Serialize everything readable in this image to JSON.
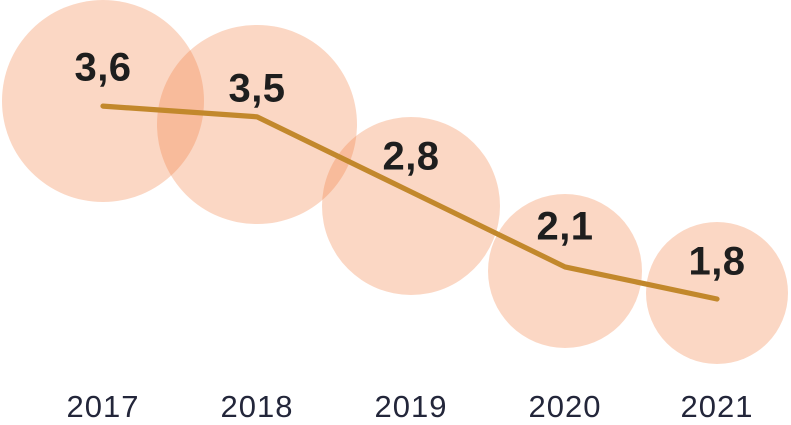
{
  "chart_data": {
    "type": "line",
    "subtype": "bubble-line",
    "title": "",
    "xlabel": "",
    "ylabel": "",
    "categories": [
      "2017",
      "2018",
      "2019",
      "2020",
      "2021"
    ],
    "values": [
      3.6,
      3.5,
      2.8,
      2.1,
      1.8
    ],
    "value_labels": [
      "3,6",
      "3,5",
      "2,8",
      "2,1",
      "1,8"
    ],
    "decimal_separator": ",",
    "ylim": [
      0,
      4.6
    ],
    "grid": false,
    "legend": "none",
    "bubble_area_proportional_to_value": true,
    "colors": {
      "background": "#ffffff",
      "bubble_fill": "rgba(242,122,58,0.30)",
      "line": "#c2882c",
      "value_label": "#1e1e1e",
      "year_label": "#23263a"
    }
  }
}
